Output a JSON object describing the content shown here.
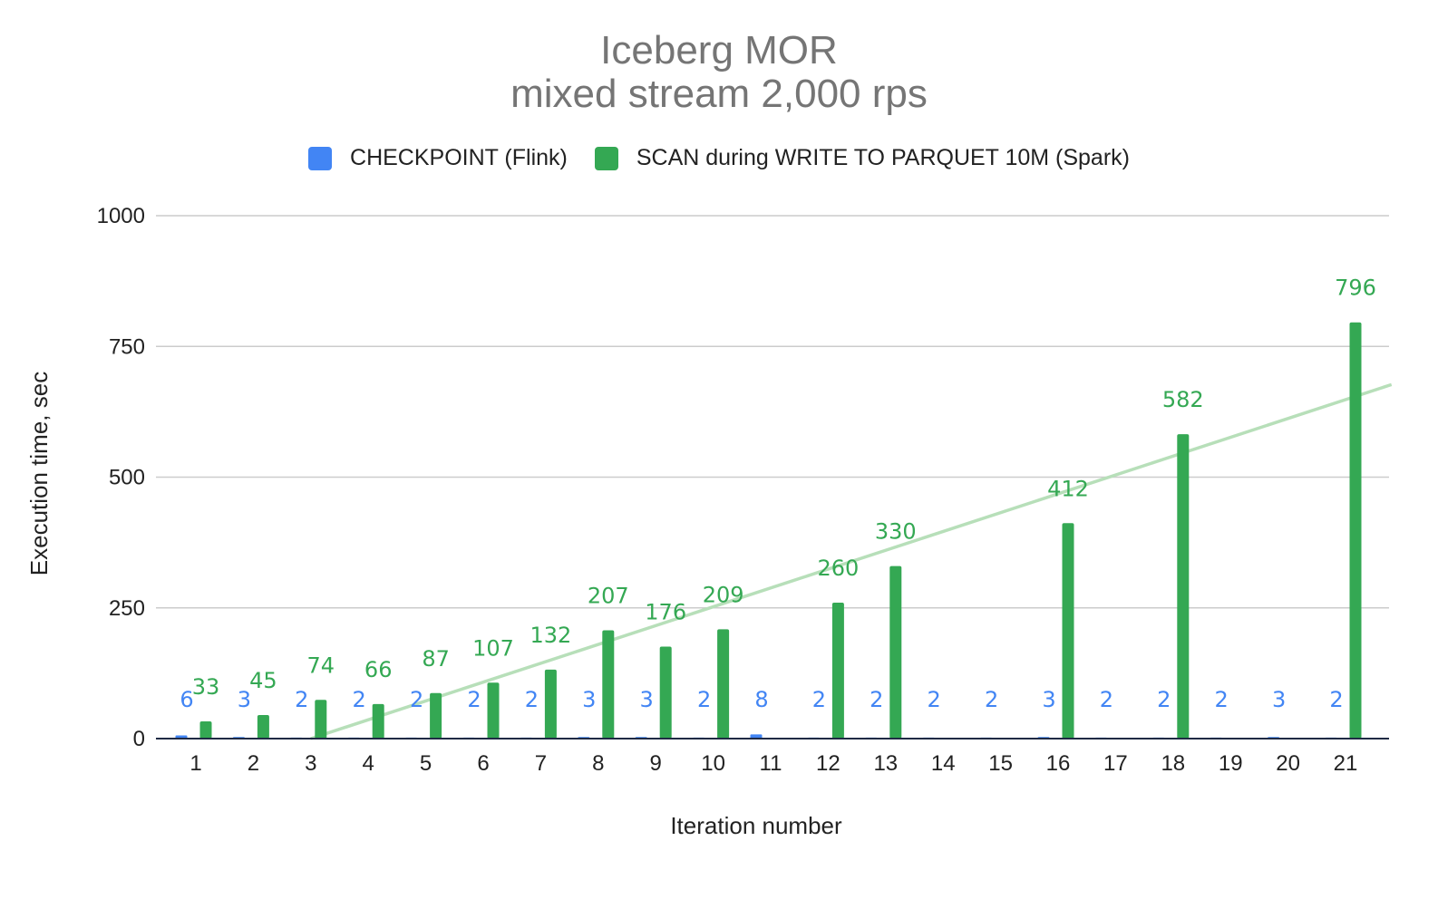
{
  "chart_data": {
    "type": "bar",
    "title": "Iceberg MOR",
    "subtitle": "mixed stream 2,000 rps",
    "xlabel": "Iteration number",
    "ylabel": "Execution time, sec",
    "ylim": [
      0,
      1000
    ],
    "yticks": [
      0,
      250,
      500,
      750,
      1000
    ],
    "grid": true,
    "legend_position": "top",
    "categories": [
      "1",
      "2",
      "3",
      "4",
      "5",
      "6",
      "7",
      "8",
      "9",
      "10",
      "11",
      "12",
      "13",
      "14",
      "15",
      "16",
      "17",
      "18",
      "19",
      "20",
      "21"
    ],
    "series": [
      {
        "name": "CHECKPOINT (Flink)",
        "color": "#4285f4",
        "values": [
          6,
          3,
          2,
          2,
          2,
          2,
          2,
          3,
          3,
          2,
          8,
          2,
          2,
          2,
          2,
          3,
          2,
          2,
          2,
          3,
          2
        ]
      },
      {
        "name": "SCAN during WRITE TO PARQUET 10M (Spark)",
        "color": "#34a853",
        "values": [
          33,
          45,
          74,
          66,
          87,
          107,
          132,
          207,
          176,
          209,
          null,
          260,
          330,
          null,
          null,
          412,
          null,
          582,
          null,
          null,
          796
        ]
      }
    ],
    "trendline": {
      "series": "SCAN during WRITE TO PARQUET 10M (Spark)",
      "type": "linear",
      "color": "#b7dfb9",
      "from": {
        "x": 3,
        "y": 0
      },
      "to": {
        "x": 21.8,
        "y": 677
      }
    }
  }
}
